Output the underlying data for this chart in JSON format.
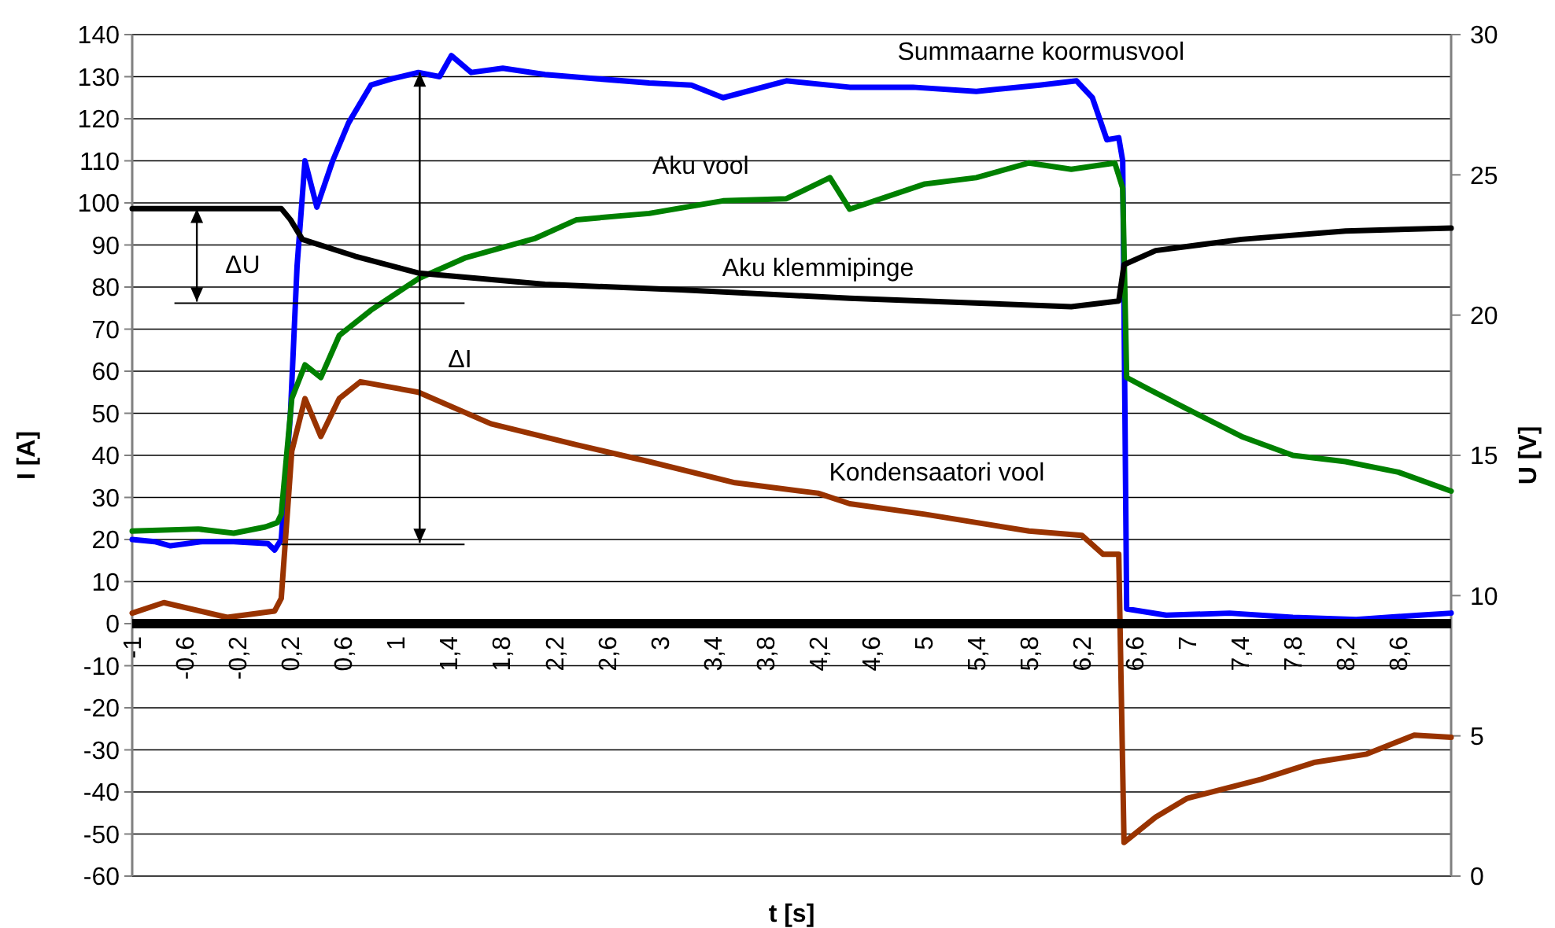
{
  "chart_data": {
    "type": "line",
    "xlabel": "t [s]",
    "ylabel": "I [A]",
    "y2label": "U [V]",
    "xlim": [
      -1,
      9
    ],
    "xticks": [
      -1,
      {
        "value": -0.6,
        "label": "-0,6"
      },
      {
        "value": -0.2,
        "label": "-0,2"
      },
      {
        "value": 0.2,
        "label": "0,2"
      },
      {
        "value": 0.6,
        "label": "0,6"
      },
      1,
      {
        "value": 1.4,
        "label": "1,4"
      },
      {
        "value": 1.8,
        "label": "1,8"
      },
      {
        "value": 2.2,
        "label": "2,2"
      },
      {
        "value": 2.6,
        "label": "2,6"
      },
      3,
      {
        "value": 3.4,
        "label": "3,4"
      },
      {
        "value": 3.8,
        "label": "3,8"
      },
      {
        "value": 4.2,
        "label": "4,2"
      },
      {
        "value": 4.6,
        "label": "4,6"
      },
      5,
      {
        "value": 5.4,
        "label": "5,4"
      },
      {
        "value": 5.8,
        "label": "5,8"
      },
      {
        "value": 6.2,
        "label": "6,2"
      },
      {
        "value": 6.6,
        "label": "6,6"
      },
      7,
      {
        "value": 7.4,
        "label": "7,4"
      },
      {
        "value": 7.8,
        "label": "7,8"
      },
      {
        "value": 8.2,
        "label": "8,2"
      },
      {
        "value": 8.6,
        "label": "8,6"
      }
    ],
    "ylim": [
      -60,
      140
    ],
    "yticks": [
      -60,
      -50,
      -40,
      -30,
      -20,
      -10,
      0,
      10,
      20,
      30,
      40,
      50,
      60,
      70,
      80,
      90,
      100,
      110,
      120,
      130,
      140
    ],
    "y2lim": [
      0,
      30
    ],
    "y2ticks": [
      0,
      5,
      10,
      15,
      20,
      25,
      30
    ],
    "grid": "y",
    "marker": "none",
    "line_style": "solid",
    "annotations": [
      {
        "text": "ΔU",
        "x": -0.51,
        "y": 98.6
      },
      "ΔI"
    ],
    "series": [
      {
        "name": "Summaarne koormusvool",
        "color": "#0000ff",
        "x": [
          -1,
          -0.83,
          -0.71,
          -0.47,
          -0.23,
          0.03,
          0.08,
          0.13,
          0.2,
          0.25,
          0.31,
          0.4,
          0.52,
          0.64,
          0.81,
          0.97,
          1.17,
          1.33,
          1.42,
          1.57,
          1.81,
          2.13,
          2.53,
          2.92,
          3.24,
          3.48,
          3.96,
          4.44,
          4.92,
          5.4,
          5.88,
          6.16,
          6.28,
          6.39,
          6.48,
          6.51,
          6.54,
          6.84,
          7.32,
          7.8,
          8.28,
          8.76,
          9
        ],
        "values": [
          20,
          19.5,
          18.5,
          19.5,
          19.5,
          19,
          17.5,
          20,
          50,
          85,
          110,
          99,
          110,
          119,
          128,
          129.5,
          131,
          130,
          135,
          131,
          132,
          130.5,
          129.5,
          128.5,
          128,
          125,
          129,
          127.5,
          127.5,
          126.5,
          128,
          129,
          125,
          115,
          115.5,
          110,
          3.5,
          2,
          2.5,
          1.5,
          1,
          2,
          2.5
        ]
      },
      {
        "name": "Aku vool",
        "color": "#008000",
        "x": [
          -1,
          -0.5,
          -0.23,
          0.01,
          0.1,
          0.13,
          0.21,
          0.31,
          0.43,
          0.57,
          0.81,
          1.17,
          1.53,
          2.05,
          2.37,
          2.92,
          3.48,
          3.96,
          4.29,
          4.44,
          5.01,
          5.4,
          5.8,
          6.12,
          6.45,
          6.51,
          6.54,
          6.69,
          7,
          7.41,
          7.8,
          8.2,
          8.6,
          9
        ],
        "values": [
          22,
          22.5,
          21.5,
          23,
          24,
          26,
          53.5,
          61.5,
          58.5,
          68.5,
          74.5,
          82,
          87,
          91.5,
          96,
          97.5,
          100.5,
          101,
          106,
          98.5,
          104.5,
          106,
          109.5,
          108,
          109.5,
          103.5,
          58.5,
          56,
          51,
          44.5,
          40,
          38.5,
          36,
          31.5
        ]
      },
      {
        "name": "Aku klemmipinge",
        "color": "#000000",
        "axis": "y2",
        "x": [
          -1,
          0.13,
          0.2,
          0.29,
          0.69,
          1.17,
          2.13,
          3.16,
          4.44,
          6.12,
          6.48,
          6.52,
          6.76,
          7.41,
          8.2,
          9
        ],
        "values": [
          23.8,
          23.8,
          23.4,
          22.7,
          22.1,
          21.5,
          21.1,
          20.9,
          20.6,
          20.3,
          20.5,
          21.8,
          22.3,
          22.7,
          23,
          23.1
        ]
      },
      {
        "name": "Kondensaatori vool",
        "color": "#993300",
        "x": [
          -1,
          -0.76,
          -0.28,
          0.08,
          0.13,
          0.21,
          0.31,
          0.43,
          0.57,
          0.73,
          1.17,
          1.72,
          2.37,
          2.92,
          3.57,
          4.2,
          4.44,
          5.01,
          5.8,
          6.2,
          6.36,
          6.48,
          6.52,
          6.76,
          7,
          7.56,
          7.96,
          8.36,
          8.72,
          9
        ],
        "values": [
          2.5,
          5,
          1.5,
          3,
          6,
          41,
          53.5,
          44.5,
          53.5,
          57.5,
          55,
          47.5,
          42.5,
          38.5,
          33.5,
          31,
          28.5,
          26,
          22,
          21,
          16.5,
          16.5,
          -52,
          -46,
          -41.5,
          -37,
          -33,
          -31,
          -26.5,
          -27
        ]
      }
    ]
  }
}
